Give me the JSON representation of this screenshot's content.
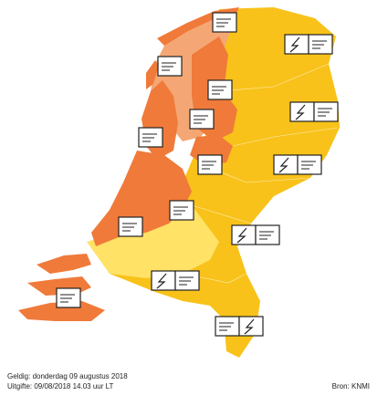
{
  "map": {
    "legend_colors": {
      "orange": "#f07a3a",
      "light_orange": "#f4a774",
      "yellow": "#f8c21a",
      "light_yellow": "#ffe266"
    },
    "icons": [
      {
        "name": "wind-icon",
        "count": 8
      },
      {
        "name": "lightning-icon",
        "count": 6
      }
    ],
    "regions": [
      {
        "name": "waddeneilanden",
        "color_level": "orange"
      },
      {
        "name": "friesland",
        "color_level": "light_orange"
      },
      {
        "name": "noord-holland",
        "color_level": "orange"
      },
      {
        "name": "ijsselmeer",
        "color_level": "orange"
      },
      {
        "name": "zuid-holland",
        "color_level": "orange"
      },
      {
        "name": "zeeland",
        "color_level": "orange"
      },
      {
        "name": "groningen",
        "color_level": "yellow"
      },
      {
        "name": "drenthe",
        "color_level": "yellow"
      },
      {
        "name": "overijssel",
        "color_level": "yellow"
      },
      {
        "name": "gelderland",
        "color_level": "yellow"
      },
      {
        "name": "utrecht",
        "color_level": "yellow"
      },
      {
        "name": "noord-brabant",
        "color_level": "yellow"
      },
      {
        "name": "limburg",
        "color_level": "yellow"
      }
    ]
  },
  "footer": {
    "valid": "Geldig: donderdag 09 augustus 2018",
    "issued": "Uitgifte: 09/08/2018 14.03 uur LT",
    "source": "Bron: KNMI"
  }
}
